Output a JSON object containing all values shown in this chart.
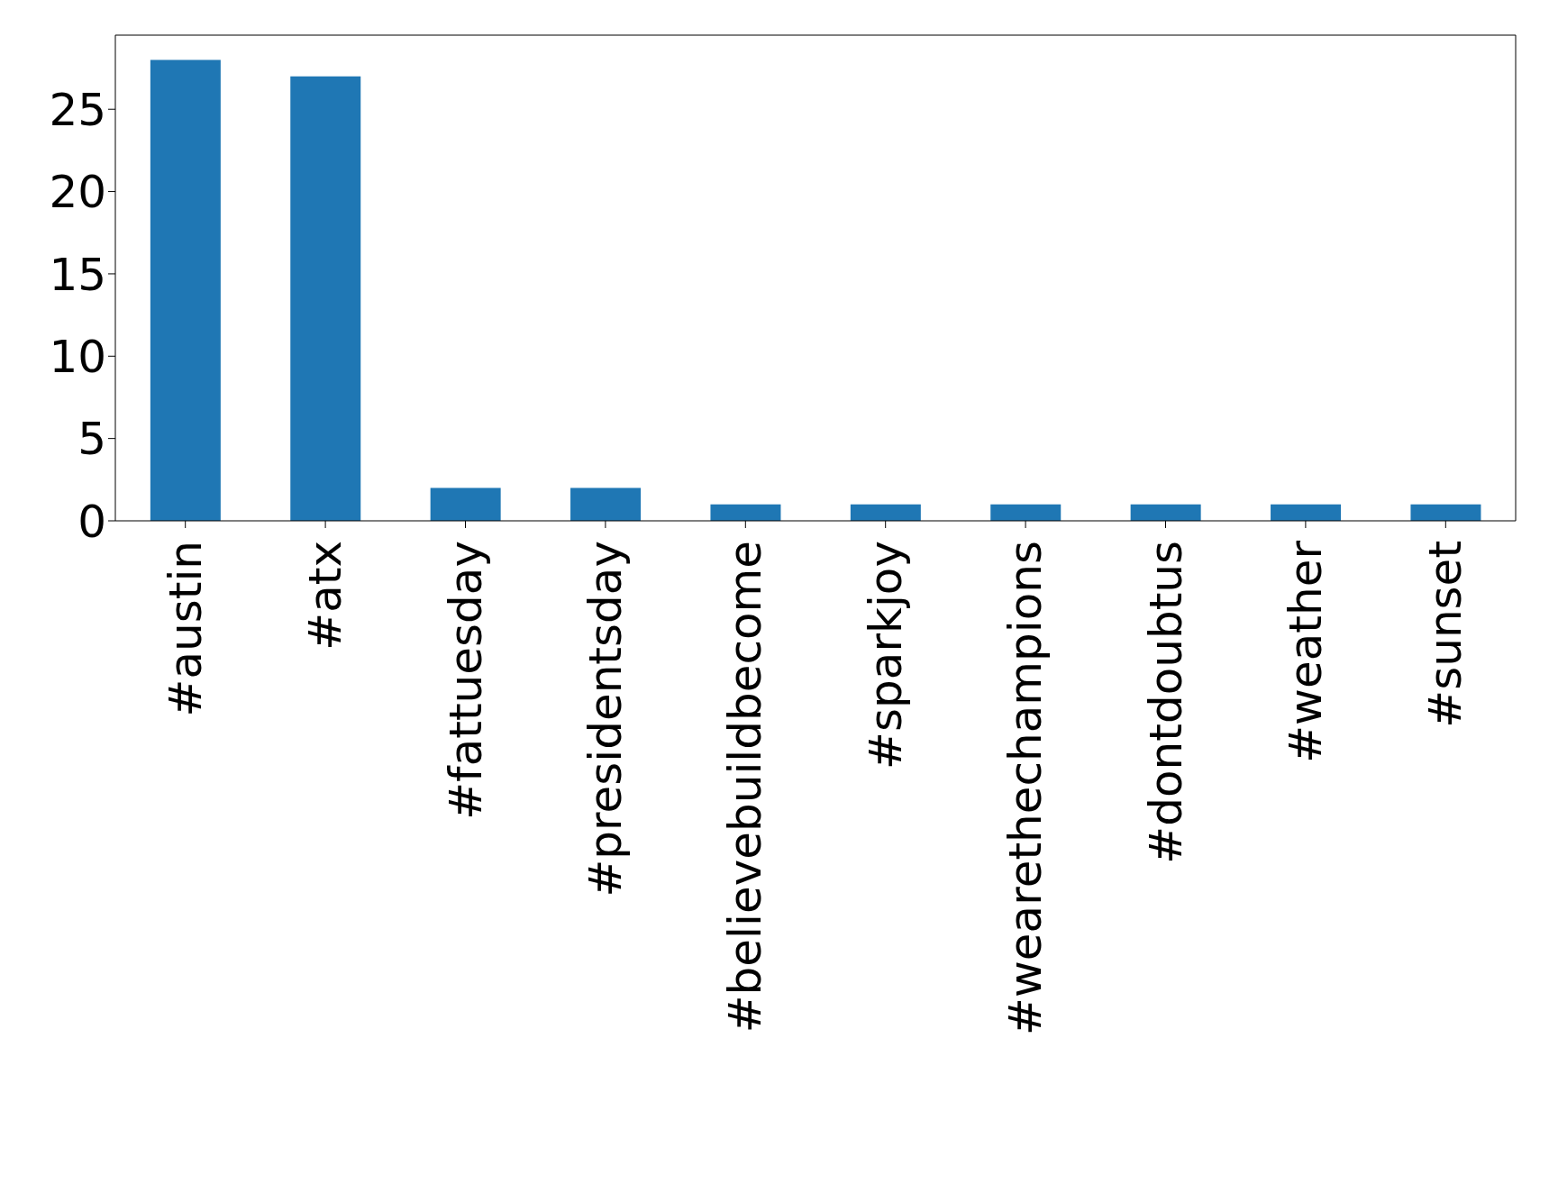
{
  "chart_data": {
    "type": "bar",
    "categories": [
      "#austin",
      "#atx",
      "#fattuesday",
      "#presidentsday",
      "#believebuildbecome",
      "#sparkjoy",
      "#wearethechampions",
      "#dontdoubtus",
      "#weather",
      "#sunset"
    ],
    "values": [
      28,
      27,
      2,
      2,
      1,
      1,
      1,
      1,
      1,
      1
    ],
    "color": "#1f77b4",
    "ylim": [
      0,
      29.5
    ],
    "yticks": [
      0,
      5,
      10,
      15,
      20,
      25
    ]
  }
}
